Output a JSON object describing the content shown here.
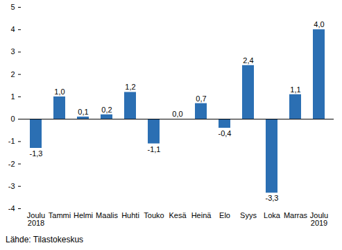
{
  "chart_data": {
    "type": "bar",
    "categories": [
      "Joulu\n2018",
      "Tammi",
      "Helmi",
      "Maalis",
      "Huhti",
      "Touko",
      "Kesä",
      "Heinä",
      "Elo",
      "Syys",
      "Loka",
      "Marras",
      "Joulu\n2019"
    ],
    "values": [
      -1.3,
      1.0,
      0.1,
      0.2,
      1.2,
      -1.1,
      0.0,
      0.7,
      -0.4,
      2.4,
      -3.3,
      1.1,
      4.0
    ],
    "value_labels": [
      "-1,3",
      "1,0",
      "0,1",
      "0,2",
      "1,2",
      "-1,1",
      "0,0",
      "0,7",
      "-0,4",
      "2,4",
      "-3,3",
      "1,1",
      "4,0"
    ],
    "data_labels": true,
    "color": "#2b6fb3",
    "ylim": [
      -4,
      5
    ],
    "yticks": [
      -4,
      -3,
      -2,
      -1,
      0,
      1,
      2,
      3,
      4,
      5
    ],
    "grid": false,
    "caption": "Lähde: Tilastokeskus"
  }
}
